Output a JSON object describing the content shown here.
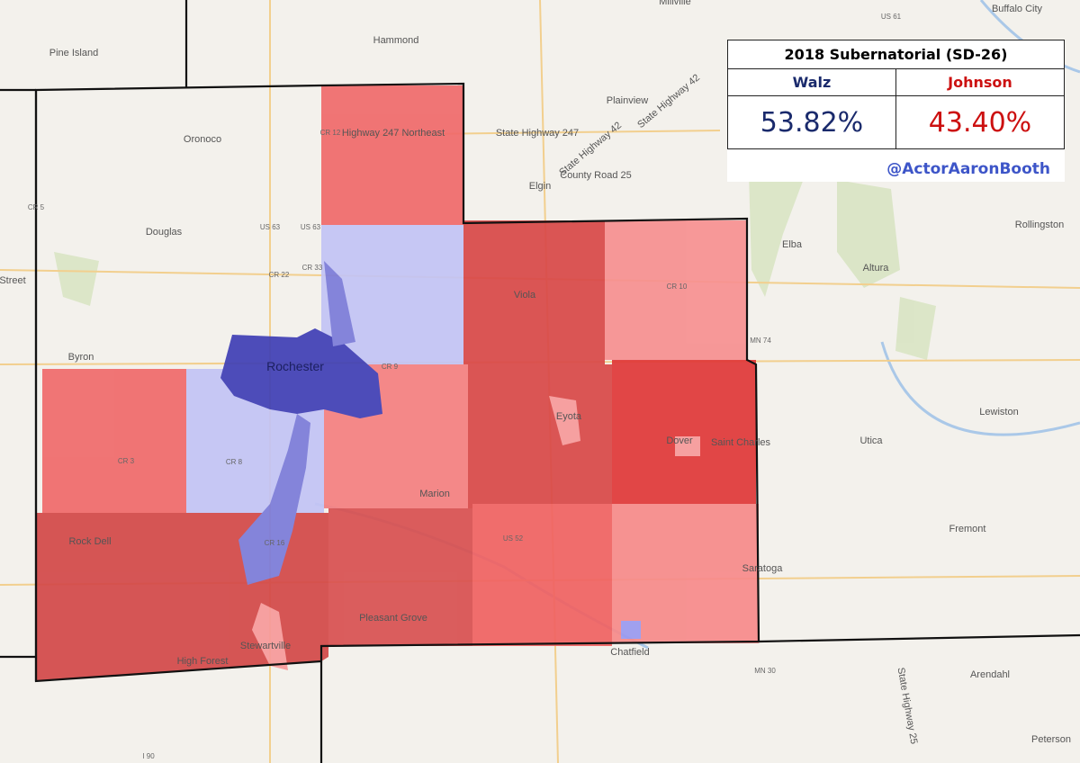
{
  "map": {
    "labels": [
      "Millville",
      "Hammond",
      "Pine Island",
      "Oronoco",
      "Highway 247 Northeast",
      "State Highway 247",
      "Plainview",
      "County Road 25",
      "Elgin",
      "Douglas",
      "Byron",
      "Rochester",
      "Viola",
      "Eyota",
      "Dover",
      "Saint Charles",
      "Lewiston",
      "Utica",
      "Marion",
      "Rock Dell",
      "Fremont",
      "Saratoga",
      "Pleasant Grove",
      "Stewartville",
      "High Forest",
      "Chatfield",
      "Arendahl",
      "Peterson",
      "Rollingston",
      "Elba",
      "Altura",
      "Buffalo City",
      "Street",
      "US 63",
      "US 63",
      "CR 33",
      "CR 22",
      "CR 12",
      "CR 5",
      "CR 9",
      "CR 10",
      "MN 74",
      "CR 8",
      "CR 3",
      "CR 16",
      "US 52",
      "MN 30",
      "I 90",
      "US 61",
      "State Highway 42",
      "State Highway 42",
      "State Highway 25"
    ]
  },
  "results": {
    "title": "2018 Subernatorial (SD-26)",
    "candidates": [
      {
        "name": "Walz",
        "share": "53.82%"
      },
      {
        "name": "Johnson",
        "share": "43.40%"
      }
    ],
    "credit": "@ActorAaronBooth"
  }
}
